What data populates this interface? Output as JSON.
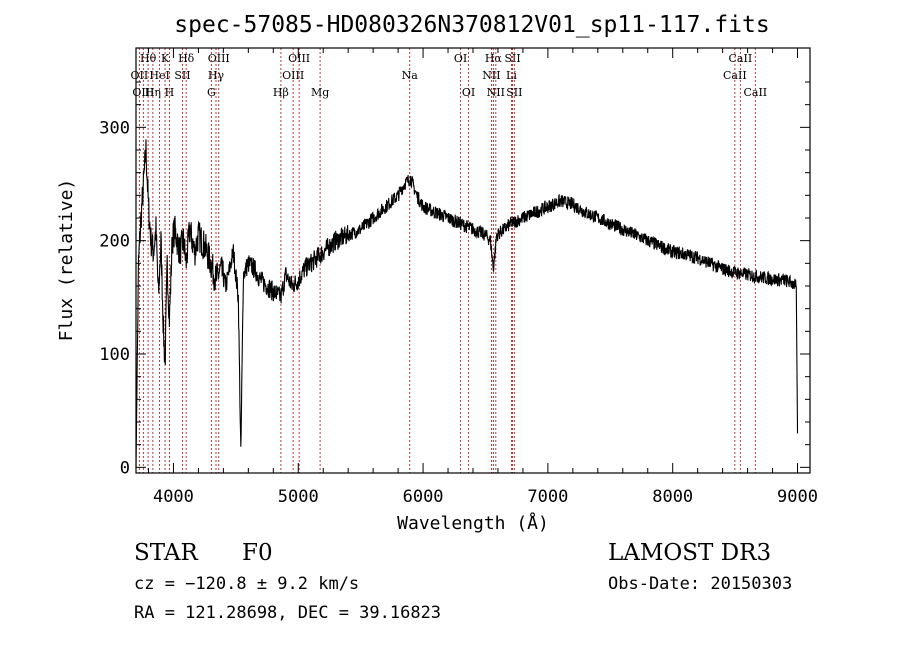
{
  "chart_data": {
    "type": "line",
    "title": "spec-57085-HD080326N370812V01_sp11-117.fits",
    "xlabel": "Wavelength (Å)",
    "ylabel": "Flux (relative)",
    "xlim": [
      3700,
      9100
    ],
    "ylim": [
      -5,
      370
    ],
    "xticks": [
      4000,
      5000,
      6000,
      7000,
      8000,
      9000
    ],
    "yticks": [
      0,
      100,
      200,
      300
    ],
    "series": [
      {
        "name": "spectrum",
        "x": [
          3700,
          3720,
          3740,
          3760,
          3780,
          3800,
          3820,
          3840,
          3860,
          3880,
          3900,
          3920,
          3933,
          3950,
          3968,
          3990,
          4010,
          4050,
          4080,
          4102,
          4130,
          4170,
          4200,
          4250,
          4300,
          4340,
          4380,
          4420,
          4480,
          4520,
          4540,
          4560,
          4600,
          4650,
          4700,
          4750,
          4800,
          4861,
          4900,
          4950,
          5000,
          5050,
          5100,
          5150,
          5200,
          5300,
          5400,
          5500,
          5600,
          5700,
          5800,
          5850,
          5900,
          5950,
          6000,
          6100,
          6200,
          6300,
          6400,
          6500,
          6540,
          6563,
          6590,
          6650,
          6700,
          6800,
          6900,
          7000,
          7100,
          7200,
          7300,
          7400,
          7500,
          7600,
          7700,
          7800,
          7900,
          8000,
          8100,
          8200,
          8300,
          8400,
          8500,
          8600,
          8700,
          8800,
          8900,
          8950,
          8990,
          9000
        ],
        "y": [
          0,
          180,
          220,
          250,
          280,
          230,
          200,
          190,
          210,
          150,
          200,
          120,
          90,
          180,
          130,
          200,
          210,
          190,
          200,
          180,
          210,
          190,
          205,
          195,
          180,
          165,
          175,
          160,
          190,
          150,
          10,
          170,
          180,
          175,
          165,
          160,
          155,
          150,
          170,
          160,
          165,
          175,
          180,
          185,
          190,
          200,
          205,
          210,
          220,
          230,
          240,
          250,
          255,
          240,
          230,
          225,
          220,
          215,
          210,
          205,
          200,
          175,
          205,
          210,
          215,
          220,
          225,
          230,
          235,
          232,
          225,
          220,
          215,
          210,
          205,
          200,
          195,
          190,
          188,
          185,
          180,
          175,
          172,
          170,
          168,
          166,
          165,
          163,
          160,
          30
        ]
      }
    ],
    "lines": [
      {
        "name": "Hθ",
        "x": 3797,
        "row": 1
      },
      {
        "name": "K",
        "x": 3933,
        "row": 1
      },
      {
        "name": "Hδ",
        "x": 4102,
        "row": 1
      },
      {
        "name": "OIII",
        "x": 4363,
        "row": 1
      },
      {
        "name": "OIII",
        "x": 5007,
        "row": 1
      },
      {
        "name": "OI",
        "x": 6300,
        "row": 1
      },
      {
        "name": "Hα",
        "x": 6563,
        "row": 1
      },
      {
        "name": "SII",
        "x": 6717,
        "row": 1
      },
      {
        "name": "CaII",
        "x": 8542,
        "row": 1
      },
      {
        "name": "OII",
        "x": 3727,
        "row": 2
      },
      {
        "name": "HeI",
        "x": 3889,
        "row": 2
      },
      {
        "name": "SII",
        "x": 4072,
        "row": 2
      },
      {
        "name": "Hγ",
        "x": 4341,
        "row": 2
      },
      {
        "name": "OIII",
        "x": 4959,
        "row": 2
      },
      {
        "name": "Na",
        "x": 5893,
        "row": 2
      },
      {
        "name": "NII",
        "x": 6548,
        "row": 2
      },
      {
        "name": "Li",
        "x": 6708,
        "row": 2
      },
      {
        "name": "CaII",
        "x": 8498,
        "row": 2
      },
      {
        "name": "OIII",
        "x": 3759,
        "row": 3
      },
      {
        "name": "Hη",
        "x": 3835,
        "row": 3
      },
      {
        "name": "H",
        "x": 3968,
        "row": 3
      },
      {
        "name": "G",
        "x": 4304,
        "row": 3
      },
      {
        "name": "Hβ",
        "x": 4861,
        "row": 3
      },
      {
        "name": "Mg",
        "x": 5175,
        "row": 3
      },
      {
        "name": "OI",
        "x": 6364,
        "row": 3
      },
      {
        "name": "NII",
        "x": 6583,
        "row": 3
      },
      {
        "name": "SII",
        "x": 6731,
        "row": 3
      },
      {
        "name": "CaII",
        "x": 8662,
        "row": 3
      }
    ]
  },
  "info": {
    "object_class": "STAR",
    "subclass": "F0",
    "survey": "LAMOST DR3",
    "redshift": "cz = −120.8 ± 9.2 km/s",
    "obs_date": "Obs-Date: 20150303",
    "coords": "RA = 121.28698, DEC =  39.16823"
  }
}
